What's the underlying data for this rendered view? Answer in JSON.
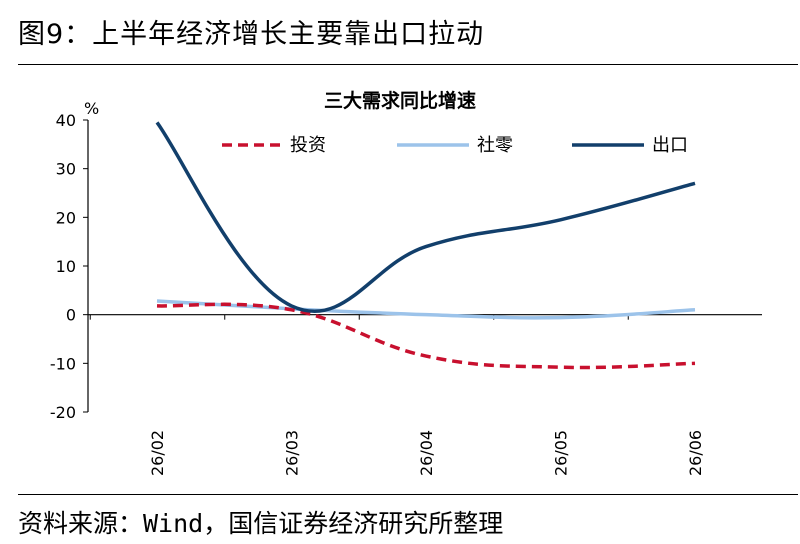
{
  "figure_title": "图9：上半年经济增长主要靠出口拉动",
  "source": "资料来源：Wind，国信证券经济研究所整理",
  "chart_data": {
    "type": "line",
    "title": "三大需求同比增速",
    "ylabel": "%",
    "xlabel": "",
    "x": [
      "26/02",
      "26/03",
      "26/04",
      "26/05",
      "26/06"
    ],
    "ylim": [
      -20,
      40
    ],
    "yticks": [
      40,
      30,
      20,
      10,
      0,
      -10,
      -20
    ],
    "legend_position": "top",
    "series": [
      {
        "name": "投资",
        "values": [
          1.8,
          1.0,
          -8.5,
          -10.8,
          -10.0
        ],
        "color": "#c8102e",
        "dash": true
      },
      {
        "name": "社零",
        "values": [
          2.8,
          1.2,
          0.0,
          -0.6,
          1.0
        ],
        "color": "#9cc3ea",
        "dash": false
      },
      {
        "name": "出口",
        "values": [
          39.5,
          1.8,
          14.0,
          19.5,
          27.0
        ],
        "color": "#123f6b",
        "dash": false
      }
    ]
  }
}
